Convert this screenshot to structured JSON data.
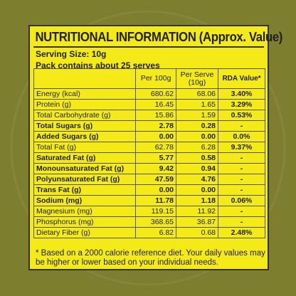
{
  "title": "NUTRITIONAL INFORMATION (Approx. Value)",
  "serving_size": "Serving Size: 10g",
  "pack_info": "Pack contains about 25 serves",
  "headers": {
    "col2": "Per 100g",
    "col3": "Per Serve (10g)",
    "col4": "RDA Value*"
  },
  "rows": [
    {
      "name": "Energy (kcal)",
      "per100": "680.62",
      "perserve": "68.06",
      "rda": "3.40%",
      "bold": false
    },
    {
      "name": "Protein (g)",
      "per100": "16.45",
      "perserve": "1.65",
      "rda": "3.29%",
      "bold": false
    },
    {
      "name": "Total Carbohydrate (g)",
      "per100": "15.86",
      "perserve": "1.59",
      "rda": "0.53%",
      "bold": false
    },
    {
      "name": "Total Sugars (g)",
      "per100": "2.78",
      "perserve": "0.28",
      "rda": "-",
      "bold": true
    },
    {
      "name": "Added Sugars (g)",
      "per100": "0.00",
      "perserve": "0.00",
      "rda": "0.0%",
      "bold": true
    },
    {
      "name": "Total Fat (g)",
      "per100": "62.78",
      "perserve": "6.28",
      "rda": "9.37%",
      "bold": false
    },
    {
      "name": "Saturated Fat (g)",
      "per100": "5.77",
      "perserve": "0.58",
      "rda": "-",
      "bold": true
    },
    {
      "name": "Monounsaturated Fat (g)",
      "per100": "9.42",
      "perserve": "0.94",
      "rda": "-",
      "bold": true
    },
    {
      "name": "Polyunsaturated Fat (g)",
      "per100": "47.59",
      "perserve": "4.76",
      "rda": "-",
      "bold": true
    },
    {
      "name": "Trans Fat (g)",
      "per100": "0.00",
      "perserve": "0.00",
      "rda": "-",
      "bold": true
    },
    {
      "name": "Sodium (mg)",
      "per100": "11.78",
      "perserve": "1.18",
      "rda": "0.06%",
      "bold": true
    },
    {
      "name": "Magnesium (mg)",
      "per100": "119.15",
      "perserve": "11.92",
      "rda": "-",
      "bold": false
    },
    {
      "name": "Phosphorus (mg)",
      "per100": "368.65",
      "perserve": "36.87",
      "rda": "-",
      "bold": false
    },
    {
      "name": "Dietary Fiber (g)",
      "per100": "6.82",
      "perserve": "0.68",
      "rda": "2.48%",
      "bold": false
    }
  ],
  "footnote": "* Based on a 2000 calorie reference diet. Your daily values may be higher or lower based on your individual needs."
}
